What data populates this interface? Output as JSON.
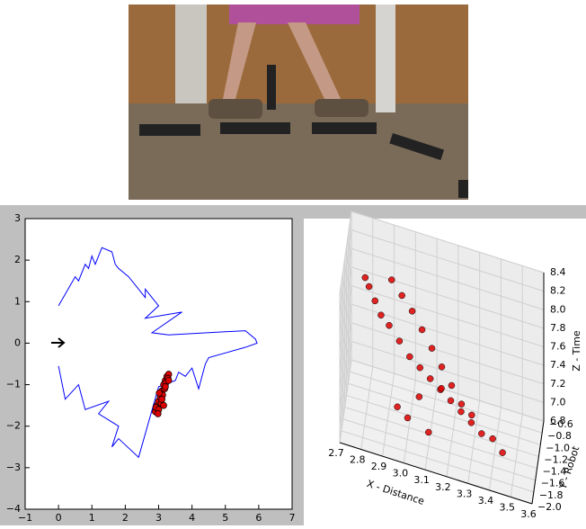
{
  "chart_data": [
    {
      "type": "line",
      "xlim": [
        -1,
        7
      ],
      "ylim": [
        -4,
        3
      ],
      "xticks": [
        {
          "value": -1,
          "label": "−1"
        },
        0,
        1,
        2,
        3,
        4,
        5,
        6,
        7
      ],
      "yticks": [
        {
          "value": -4,
          "label": "−4"
        },
        {
          "value": -3,
          "label": "−3"
        },
        {
          "value": -2,
          "label": "−2"
        },
        {
          "value": -1,
          "label": "−1"
        },
        0,
        1,
        2,
        3
      ],
      "series": [
        {
          "color": "#0000ff",
          "x": [
            0.0,
            0.5,
            0.6,
            0.8,
            0.9,
            1.0,
            1.1,
            1.3,
            1.6,
            1.7,
            1.8,
            2.1,
            2.4,
            2.6,
            2.6,
            3.0,
            2.6,
            3.7,
            2.8,
            3.3,
            5.6,
            5.9,
            5.95,
            5.6,
            4.5,
            4.4,
            4.2,
            4.0,
            3.8,
            3.6,
            3.5,
            3.0,
            2.4,
            1.8,
            1.6,
            1.8,
            1.2,
            1.5,
            0.8,
            0.6,
            0.2,
            0.0
          ],
          "values": [
            0.9,
            1.6,
            1.5,
            1.9,
            1.8,
            2.1,
            1.9,
            2.3,
            2.2,
            1.9,
            1.8,
            1.6,
            1.3,
            1.1,
            1.3,
            0.9,
            0.6,
            0.75,
            0.25,
            0.2,
            0.3,
            0.1,
            0.0,
            -0.1,
            -0.35,
            -0.5,
            -1.1,
            -0.6,
            -0.8,
            -0.7,
            -0.9,
            -1.05,
            -2.75,
            -2.3,
            -2.5,
            -2.0,
            -1.7,
            -1.4,
            -1.6,
            -1.0,
            -1.35,
            -0.55
          ]
        }
      ],
      "scatter": {
        "color": "#dd0000",
        "x": [
          2.9,
          2.95,
          3.0,
          3.05,
          3.1,
          3.15,
          3.2,
          3.25,
          3.3,
          2.92,
          3.0,
          3.08,
          3.12,
          3.18,
          3.22,
          3.28,
          3.02,
          3.1,
          3.2,
          2.98,
          3.15,
          3.3
        ],
        "y": [
          -1.65,
          -1.5,
          -1.4,
          -1.3,
          -1.15,
          -1.0,
          -0.9,
          -0.8,
          -0.75,
          -1.55,
          -1.6,
          -1.45,
          -1.25,
          -1.1,
          -0.95,
          -0.85,
          -1.2,
          -1.35,
          -1.05,
          -1.7,
          -1.5,
          -0.9
        ]
      }
    },
    {
      "type": "scatter3d",
      "xlabel": "X - Distance",
      "ylabel": "Y - Robot",
      "zlabel": "Z - Time",
      "xlim": [
        2.7,
        3.6
      ],
      "ylim": [
        -2.0,
        -0.6
      ],
      "zlim": [
        6.8,
        8.4
      ],
      "xticks": [
        2.7,
        2.8,
        2.9,
        {
          "value": 3.0,
          "label": "3.0"
        },
        3.1,
        3.2,
        3.3,
        3.4,
        3.5,
        3.6
      ],
      "yticks": [
        {
          "value": -2.0,
          "label": "−2.0"
        },
        {
          "value": -1.8,
          "label": "−1.8"
        },
        {
          "value": -1.6,
          "label": "−1.6"
        },
        {
          "value": -1.4,
          "label": "−1.4"
        },
        {
          "value": -1.2,
          "label": "−1.2"
        },
        {
          "value": -1.0,
          "label": "−1.0"
        },
        {
          "value": -0.8,
          "label": "−0.8"
        },
        {
          "value": -0.6,
          "label": "−0.6"
        }
      ],
      "zticks": [
        {
          "value": 6.8,
          "label": "6.8"
        },
        {
          "value": 7.0,
          "label": "7.0"
        },
        7.2,
        7.4,
        7.6,
        7.8,
        {
          "value": 8.0,
          "label": "8.0"
        },
        8.2,
        8.4
      ],
      "color": "#dd0000",
      "x": [
        2.78,
        2.8,
        2.83,
        2.86,
        2.9,
        2.95,
        3.0,
        3.05,
        3.1,
        3.15,
        3.2,
        3.25,
        3.3,
        3.35,
        2.9,
        2.95,
        3.0,
        3.05,
        3.1,
        3.15,
        3.2,
        3.25,
        3.3,
        3.4,
        3.45,
        3.1,
        3.0,
        2.95,
        3.05,
        3.15
      ],
      "y": [
        -1.0,
        -1.05,
        -1.1,
        -1.15,
        -1.2,
        -1.25,
        -1.3,
        -1.35,
        -1.4,
        -1.45,
        -1.5,
        -1.55,
        -1.6,
        -1.65,
        -0.9,
        -0.95,
        -1.0,
        -1.1,
        -1.2,
        -1.3,
        -1.4,
        -1.5,
        -1.55,
        -1.6,
        -1.7,
        -1.6,
        -1.55,
        -1.5,
        -1.45,
        -1.35
      ],
      "z": [
        8.0,
        7.95,
        7.85,
        7.75,
        7.7,
        7.6,
        7.5,
        7.45,
        7.4,
        7.35,
        7.3,
        7.25,
        7.2,
        7.15,
        8.0,
        7.9,
        7.8,
        7.7,
        7.6,
        7.5,
        7.4,
        7.3,
        7.25,
        7.1,
        7.05,
        6.95,
        7.0,
        7.05,
        7.2,
        7.3
      ]
    }
  ]
}
